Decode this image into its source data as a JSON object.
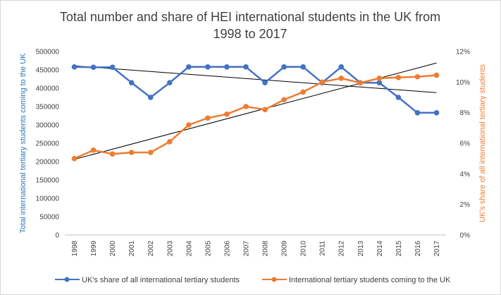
{
  "chart_data": {
    "type": "line",
    "title_line1": "Total number and share of HEI international students in the UK from",
    "title_line2": "1998 to 2017",
    "categories": [
      "1998",
      "1999",
      "2000",
      "2001",
      "2002",
      "2003",
      "2004",
      "2005",
      "2006",
      "2007",
      "2008",
      "2009",
      "2010",
      "2011",
      "2012",
      "2013",
      "2014",
      "2015",
      "2016",
      "2017"
    ],
    "y_left": {
      "label": "Total international tertiary students coming to the UK",
      "min": 0,
      "max": 500000,
      "ticks": [
        "0",
        "50000",
        "100000",
        "150000",
        "200000",
        "250000",
        "300000",
        "350000",
        "400000",
        "450000",
        "500000"
      ],
      "tick_values": [
        0,
        50000,
        100000,
        150000,
        200000,
        250000,
        300000,
        350000,
        400000,
        450000,
        500000
      ]
    },
    "y_right": {
      "label": "UK's share of all international tertiary students",
      "min": 0,
      "max": 12,
      "ticks": [
        "0%",
        "2%",
        "4%",
        "6%",
        "8%",
        "10%",
        "12%"
      ],
      "tick_values": [
        0,
        2,
        4,
        6,
        8,
        10,
        12
      ]
    },
    "series": [
      {
        "name": "UK's share of all international tertiary students",
        "axis": "left",
        "color": "#4472c4",
        "values": [
          458000,
          457000,
          457000,
          415000,
          375000,
          415000,
          458000,
          458000,
          458000,
          458000,
          415000,
          458000,
          458000,
          415000,
          458000,
          415000,
          415000,
          375000,
          333000,
          333000
        ]
      },
      {
        "name": "International tertiary students coming to the UK",
        "axis": "right",
        "color": "#ed7d31",
        "values": [
          5.0,
          5.55,
          5.3,
          5.4,
          5.4,
          6.1,
          7.2,
          7.65,
          7.9,
          8.4,
          8.2,
          8.85,
          9.35,
          10.0,
          10.25,
          9.95,
          10.25,
          10.3,
          10.35,
          10.45
        ]
      }
    ],
    "trendlines": [
      {
        "series": "UK's share of all international tertiary students",
        "axis": "left",
        "start": 461000,
        "end": 388000,
        "color": "#000000"
      },
      {
        "series": "International tertiary students coming to the UK",
        "axis": "right",
        "start": 4.95,
        "end": 11.25,
        "color": "#000000"
      }
    ],
    "grid": false,
    "legend_position": "bottom"
  }
}
